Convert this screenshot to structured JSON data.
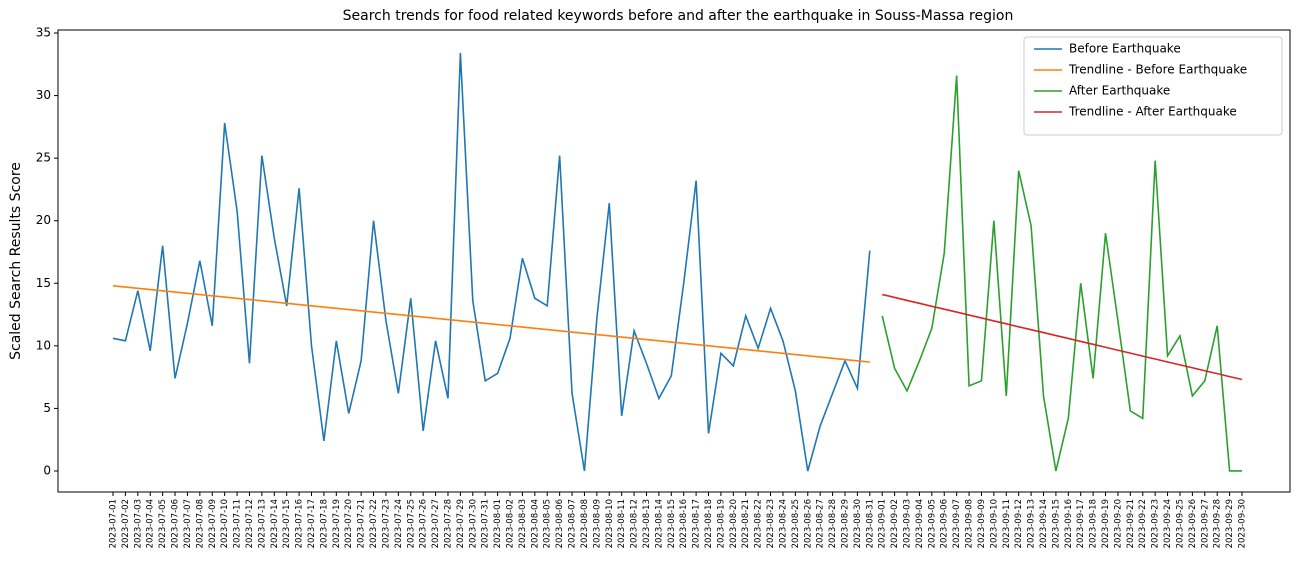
{
  "chart_data": {
    "type": "line",
    "title": "Search trends for food related keywords before and after the earthquake in Souss-Massa region",
    "ylabel": "Scaled Search Results Score",
    "categories": [
      "2023-07-01",
      "2023-07-02",
      "2023-07-03",
      "2023-07-04",
      "2023-07-05",
      "2023-07-06",
      "2023-07-07",
      "2023-07-08",
      "2023-07-09",
      "2023-07-10",
      "2023-07-11",
      "2023-07-12",
      "2023-07-13",
      "2023-07-14",
      "2023-07-15",
      "2023-07-16",
      "2023-07-17",
      "2023-07-18",
      "2023-07-19",
      "2023-07-20",
      "2023-07-21",
      "2023-07-22",
      "2023-07-23",
      "2023-07-24",
      "2023-07-25",
      "2023-07-26",
      "2023-07-27",
      "2023-07-28",
      "2023-07-29",
      "2023-07-30",
      "2023-07-31",
      "2023-08-01",
      "2023-08-02",
      "2023-08-03",
      "2023-08-04",
      "2023-08-05",
      "2023-08-06",
      "2023-08-07",
      "2023-08-08",
      "2023-08-09",
      "2023-08-10",
      "2023-08-11",
      "2023-08-12",
      "2023-08-13",
      "2023-08-14",
      "2023-08-15",
      "2023-08-16",
      "2023-08-17",
      "2023-08-18",
      "2023-08-19",
      "2023-08-20",
      "2023-08-21",
      "2023-08-22",
      "2023-08-23",
      "2023-08-24",
      "2023-08-25",
      "2023-08-26",
      "2023-08-27",
      "2023-08-28",
      "2023-08-29",
      "2023-08-30",
      "2023-08-31",
      "2023-09-01",
      "2023-09-02",
      "2023-09-03",
      "2023-09-04",
      "2023-09-05",
      "2023-09-06",
      "2023-09-07",
      "2023-09-08",
      "2023-09-09",
      "2023-09-10",
      "2023-09-11",
      "2023-09-12",
      "2023-09-13",
      "2023-09-14",
      "2023-09-15",
      "2023-09-16",
      "2023-09-17",
      "2023-09-18",
      "2023-09-19",
      "2023-09-20",
      "2023-09-21",
      "2023-09-22",
      "2023-09-23",
      "2023-09-24",
      "2023-09-25",
      "2023-09-26",
      "2023-09-27",
      "2023-09-28",
      "2023-09-29",
      "2023-09-30"
    ],
    "series": [
      {
        "name": "Before Earthquake",
        "color": "#1f77b4",
        "values": [
          10.6,
          10.4,
          14.4,
          9.6,
          18.0,
          7.4,
          11.8,
          16.8,
          11.6,
          27.8,
          20.8,
          8.6,
          25.2,
          18.6,
          13.2,
          22.6,
          10.0,
          2.4,
          10.4,
          4.6,
          8.8,
          20.0,
          12.0,
          6.2,
          13.8,
          3.2,
          10.4,
          5.8,
          33.4,
          13.6,
          7.2,
          7.8,
          10.6,
          17.0,
          13.8,
          13.2,
          25.2,
          6.2,
          0,
          12.2,
          21.4,
          4.4,
          11.2,
          8.6,
          5.8,
          7.6,
          15.0,
          23.2,
          3.0,
          9.4,
          8.4,
          12.4,
          9.8,
          13.0,
          10.4,
          6.4,
          0,
          3.6,
          6.2,
          8.8,
          6.6,
          17.6,
          null,
          null,
          null,
          null,
          null,
          null,
          null,
          null,
          null,
          null,
          null,
          null,
          null,
          null,
          null,
          null,
          null,
          null,
          null,
          null,
          null,
          null,
          null,
          null,
          null,
          null,
          null,
          null,
          null,
          null
        ]
      },
      {
        "name": "Trendline - Before Earthquake",
        "color": "#ff7f0e",
        "values": [
          14.8,
          14.7,
          14.6,
          14.5,
          14.4,
          14.3,
          14.2,
          14.1,
          14.0,
          13.9,
          13.8,
          13.7,
          13.6,
          13.5,
          13.4,
          13.3,
          13.2,
          13.1,
          13.0,
          12.9,
          12.8,
          12.7,
          12.6,
          12.5,
          12.4,
          12.3,
          12.2,
          12.1,
          12.0,
          11.9,
          11.8,
          11.7,
          11.6,
          11.5,
          11.4,
          11.3,
          11.2,
          11.1,
          11.0,
          10.9,
          10.8,
          10.7,
          10.6,
          10.5,
          10.4,
          10.3,
          10.2,
          10.1,
          10.0,
          9.9,
          9.8,
          9.7,
          9.6,
          9.5,
          9.4,
          9.3,
          9.2,
          9.1,
          9.0,
          8.9,
          8.8,
          8.7,
          null,
          null,
          null,
          null,
          null,
          null,
          null,
          null,
          null,
          null,
          null,
          null,
          null,
          null,
          null,
          null,
          null,
          null,
          null,
          null,
          null,
          null,
          null,
          null,
          null,
          null,
          null,
          null,
          null,
          null
        ]
      },
      {
        "name": "After Earthquake",
        "color": "#2ca02c",
        "values": [
          null,
          null,
          null,
          null,
          null,
          null,
          null,
          null,
          null,
          null,
          null,
          null,
          null,
          null,
          null,
          null,
          null,
          null,
          null,
          null,
          null,
          null,
          null,
          null,
          null,
          null,
          null,
          null,
          null,
          null,
          null,
          null,
          null,
          null,
          null,
          null,
          null,
          null,
          null,
          null,
          null,
          null,
          null,
          null,
          null,
          null,
          null,
          null,
          null,
          null,
          null,
          null,
          null,
          null,
          null,
          null,
          null,
          null,
          null,
          null,
          null,
          null,
          12.4,
          8.2,
          6.4,
          8.8,
          11.4,
          17.4,
          31.6,
          6.8,
          7.2,
          20.0,
          6.0,
          24.0,
          19.6,
          6.0,
          0,
          4.2,
          15.0,
          7.4,
          19.0,
          12.0,
          4.8,
          4.2,
          24.8,
          9.2,
          10.8,
          6.0,
          7.2,
          11.6,
          0,
          0
        ]
      },
      {
        "name": "Trendline - After Earthquake",
        "color": "#d62728",
        "values": [
          null,
          null,
          null,
          null,
          null,
          null,
          null,
          null,
          null,
          null,
          null,
          null,
          null,
          null,
          null,
          null,
          null,
          null,
          null,
          null,
          null,
          null,
          null,
          null,
          null,
          null,
          null,
          null,
          null,
          null,
          null,
          null,
          null,
          null,
          null,
          null,
          null,
          null,
          null,
          null,
          null,
          null,
          null,
          null,
          null,
          null,
          null,
          null,
          null,
          null,
          null,
          null,
          null,
          null,
          null,
          null,
          null,
          null,
          null,
          null,
          null,
          null,
          14.1,
          13.87,
          13.63,
          13.4,
          13.16,
          12.93,
          12.7,
          12.46,
          12.23,
          11.99,
          11.76,
          11.52,
          11.29,
          11.06,
          10.82,
          10.59,
          10.35,
          10.12,
          9.89,
          9.65,
          9.42,
          9.18,
          8.95,
          8.71,
          8.48,
          8.25,
          8.01,
          7.78,
          7.54,
          7.31
        ]
      }
    ],
    "ylim": [
      -1.68,
      35.24
    ],
    "yticks": [
      0,
      5,
      10,
      15,
      20,
      25,
      30,
      35
    ],
    "grid": false,
    "legend": "upper right"
  }
}
